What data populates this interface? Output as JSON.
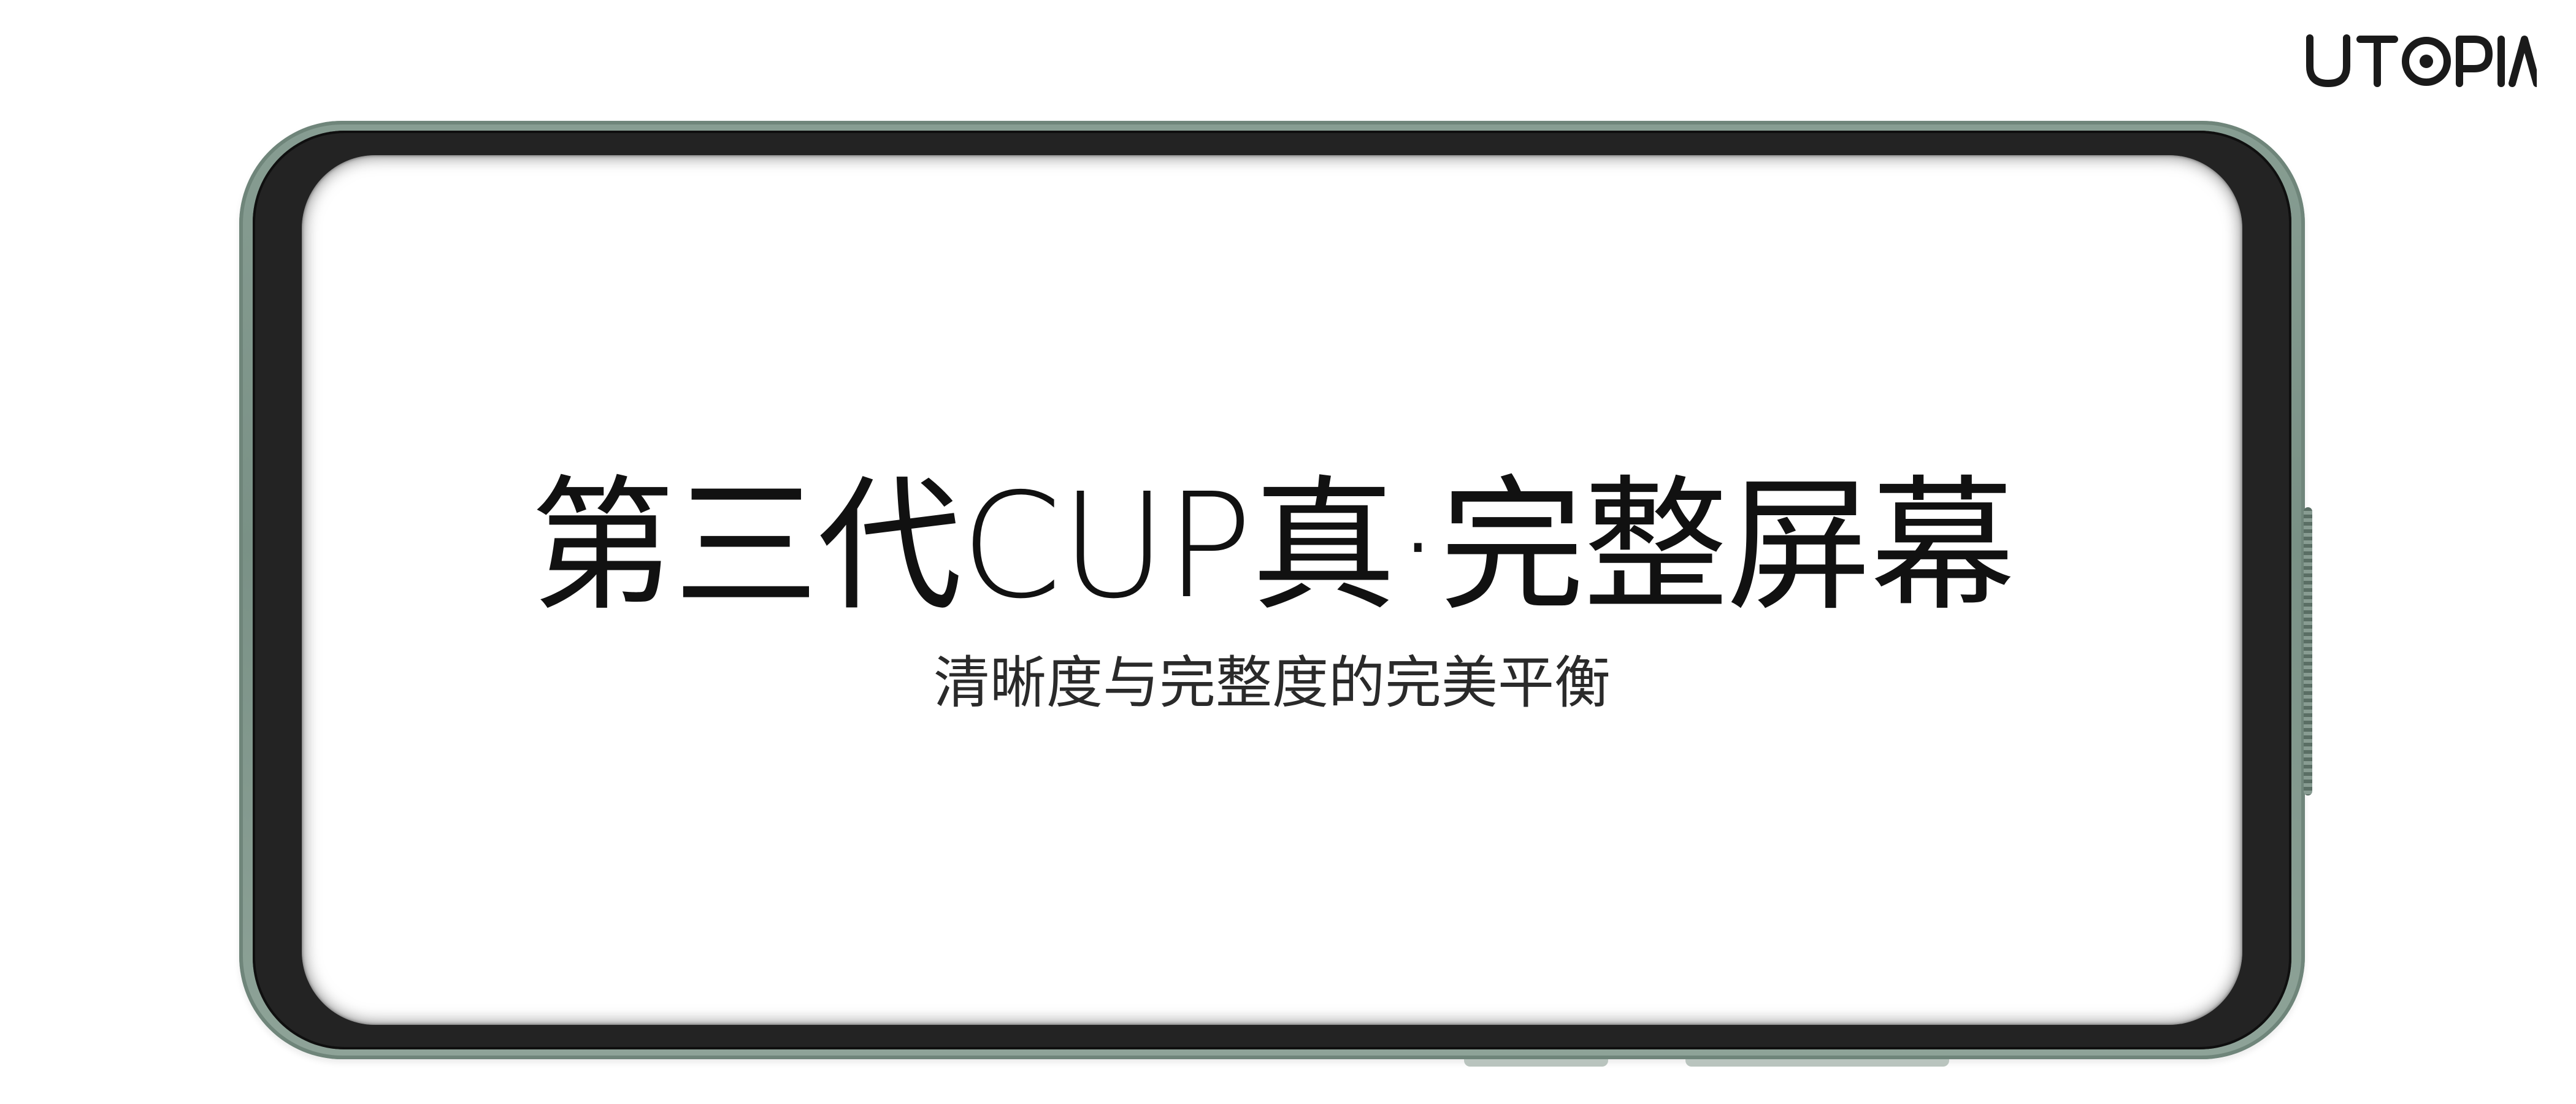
{
  "brand": {
    "logo_text": "UTOPIA"
  },
  "screen": {
    "headline": "第三代CUP真·完整屏幕",
    "subtitle": "清晰度与完整度的完美平衡"
  },
  "colors": {
    "frame": "#7a9186",
    "bezel": "#232323",
    "screen": "#ffffff",
    "text": "#111111"
  }
}
